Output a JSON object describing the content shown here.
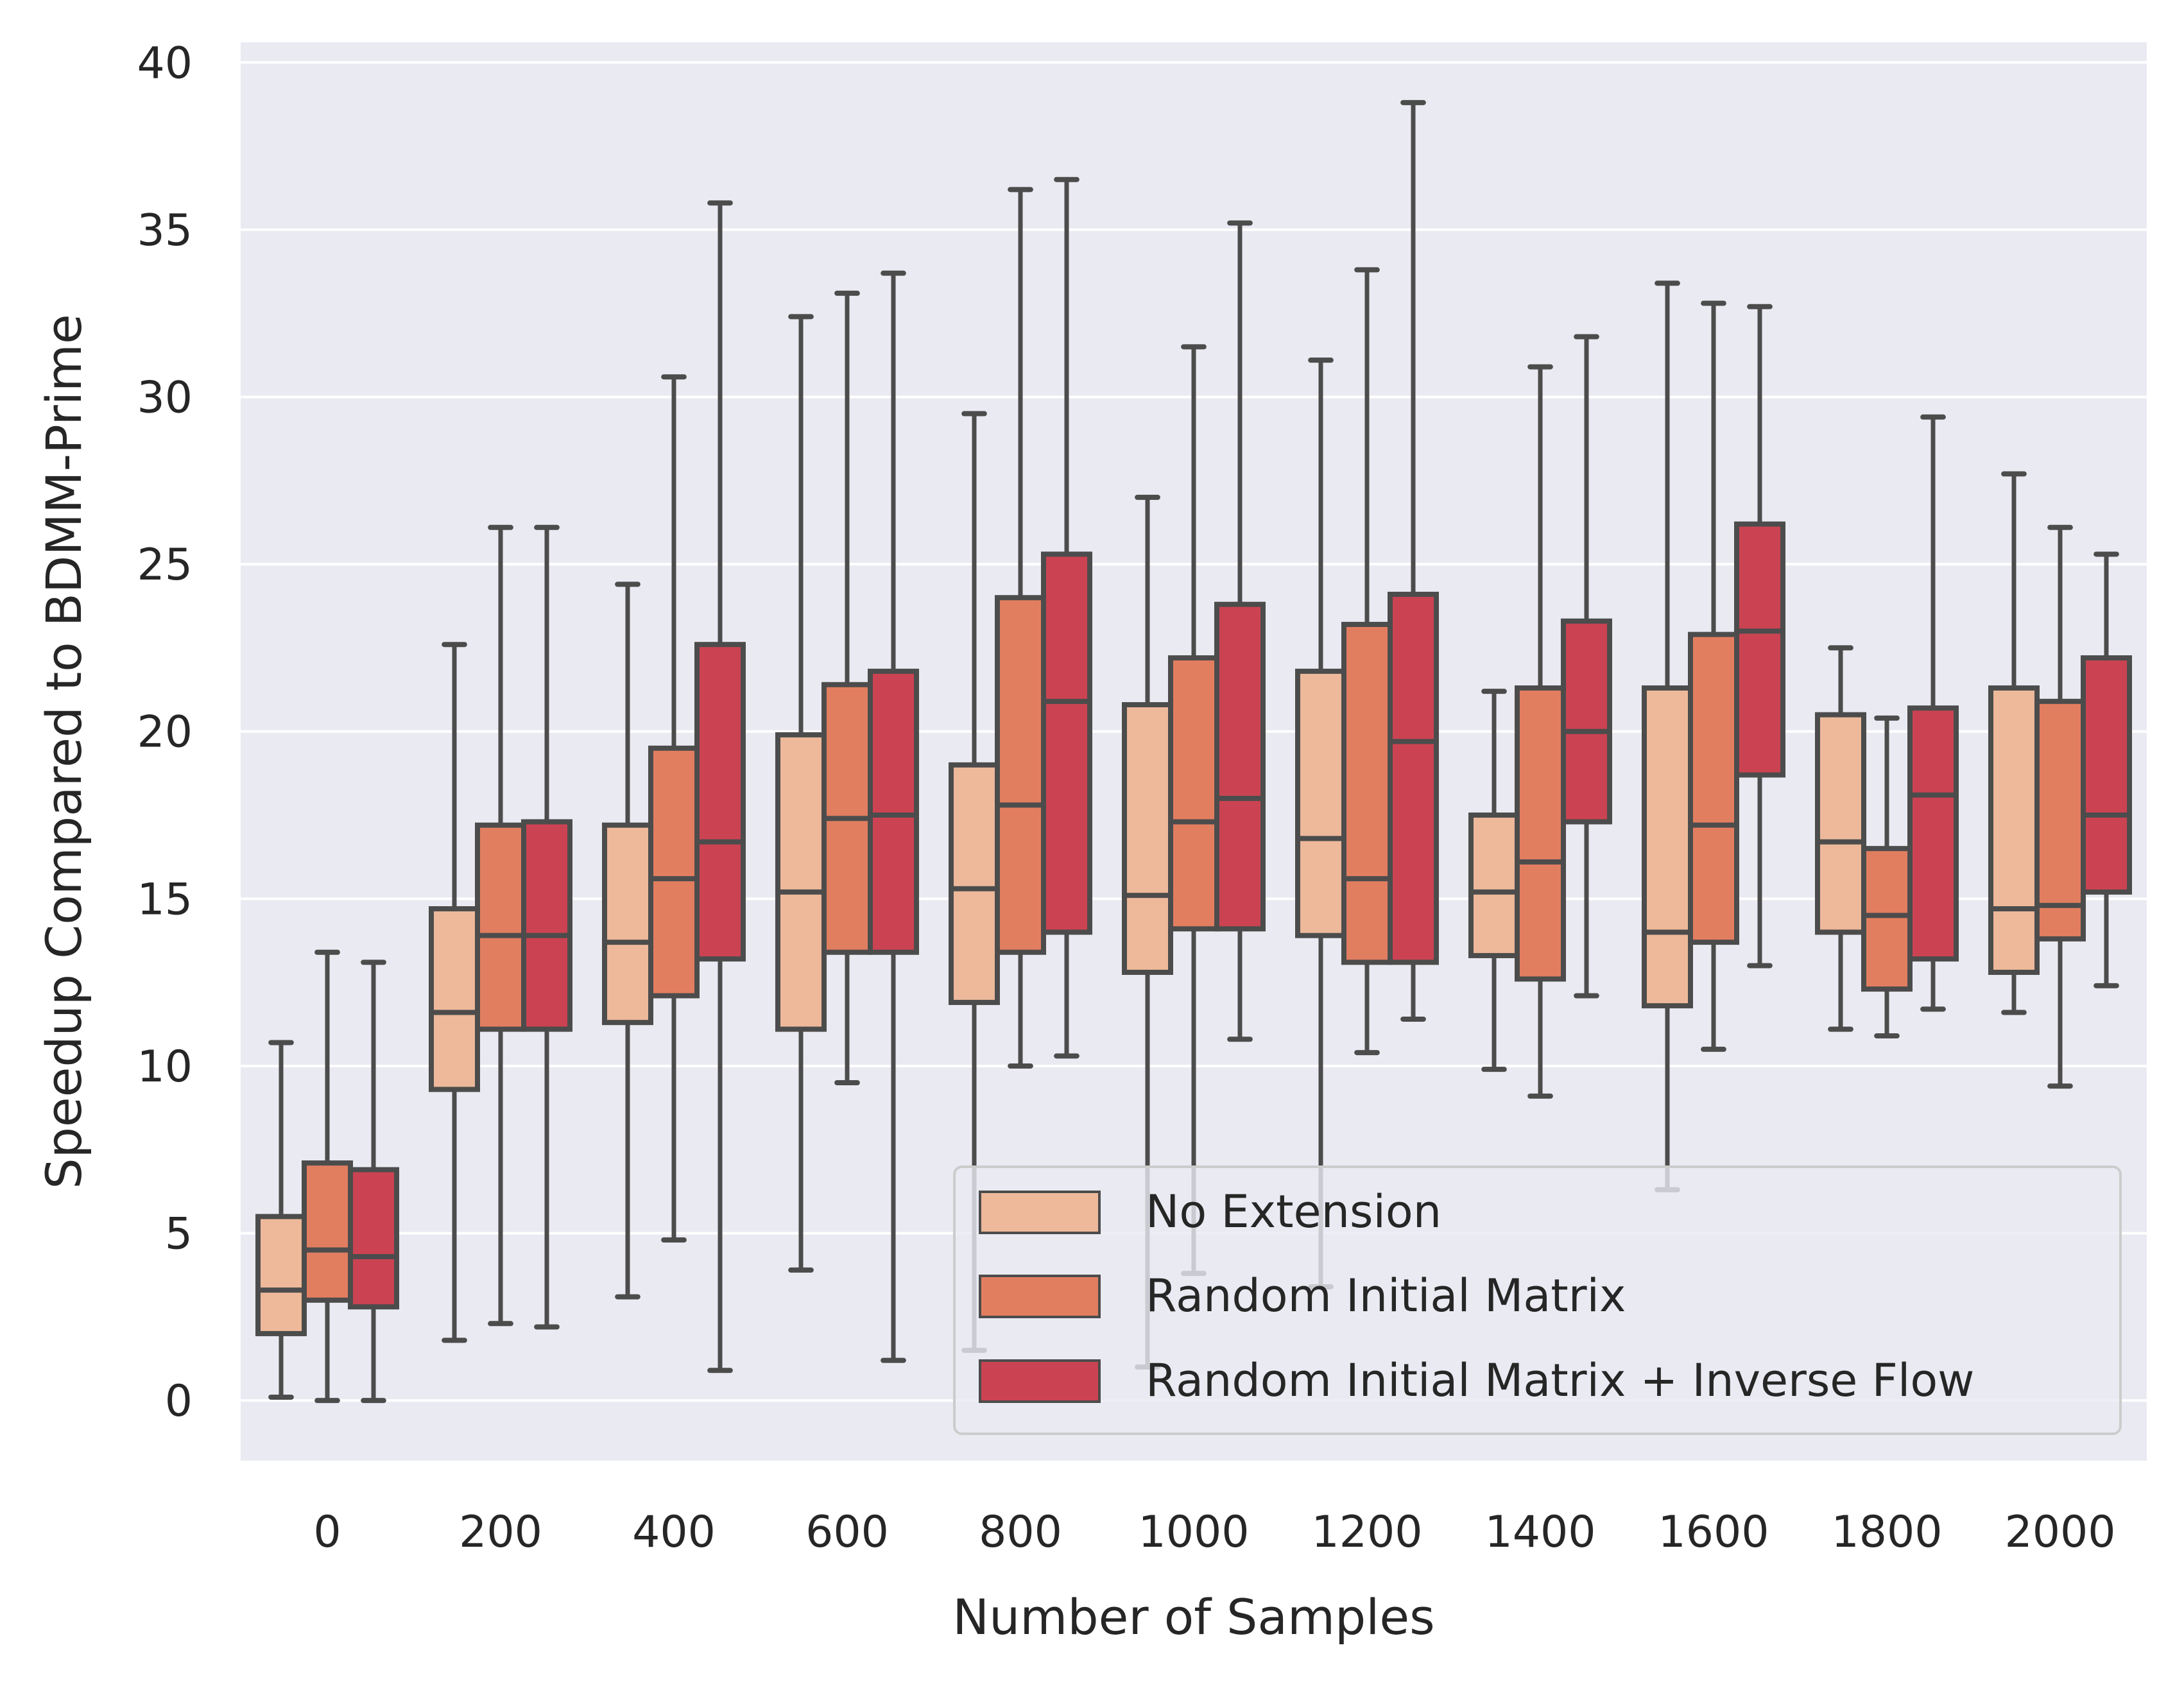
{
  "chart_data": {
    "type": "box",
    "title": "",
    "xlabel": "Number of Samples",
    "ylabel": "Speedup Compared to BDMM-Prime",
    "categories": [
      "0",
      "200",
      "400",
      "600",
      "800",
      "1000",
      "1200",
      "1400",
      "1600",
      "1800",
      "2000"
    ],
    "ylim": [
      -1.8,
      40.6
    ],
    "yticks": [
      0,
      5,
      10,
      15,
      20,
      25,
      30,
      35,
      40
    ],
    "grid": true,
    "legend_position": "lower-right",
    "colors": {
      "No Extension": "#edb99a",
      "Random Initial Matrix": "#e27e60",
      "Random Initial Matrix + Inverse Flow": "#cb4352"
    },
    "edge_color": "#4c4c4c",
    "background": "#eaeaf2",
    "series": [
      {
        "name": "No Extension",
        "boxes": [
          {
            "min": 0.1,
            "q1": 2.0,
            "median": 3.3,
            "q3": 5.5,
            "max": 10.7
          },
          {
            "min": 1.8,
            "q1": 9.3,
            "median": 11.6,
            "q3": 14.7,
            "max": 22.6
          },
          {
            "min": 3.1,
            "q1": 11.3,
            "median": 13.7,
            "q3": 17.2,
            "max": 24.4
          },
          {
            "min": 3.9,
            "q1": 11.1,
            "median": 15.2,
            "q3": 19.9,
            "max": 32.4
          },
          {
            "min": 1.5,
            "q1": 11.9,
            "median": 15.3,
            "q3": 19.0,
            "max": 29.5
          },
          {
            "min": 1.0,
            "q1": 12.8,
            "median": 15.1,
            "q3": 20.8,
            "max": 27.0
          },
          {
            "min": 3.4,
            "q1": 13.9,
            "median": 16.8,
            "q3": 21.8,
            "max": 31.1
          },
          {
            "min": 9.9,
            "q1": 13.3,
            "median": 15.2,
            "q3": 17.5,
            "max": 21.2
          },
          {
            "min": 6.3,
            "q1": 11.8,
            "median": 14.0,
            "q3": 21.3,
            "max": 33.4
          },
          {
            "min": 11.1,
            "q1": 14.0,
            "median": 16.7,
            "q3": 20.5,
            "max": 22.5
          },
          {
            "min": 11.6,
            "q1": 12.8,
            "median": 14.7,
            "q3": 21.3,
            "max": 27.7
          }
        ]
      },
      {
        "name": "Random Initial Matrix",
        "boxes": [
          {
            "min": 0.0,
            "q1": 3.0,
            "median": 4.5,
            "q3": 7.1,
            "max": 13.4
          },
          {
            "min": 2.3,
            "q1": 11.1,
            "median": 13.9,
            "q3": 17.2,
            "max": 26.1
          },
          {
            "min": 4.8,
            "q1": 12.1,
            "median": 15.6,
            "q3": 19.5,
            "max": 30.6
          },
          {
            "min": 9.5,
            "q1": 13.4,
            "median": 17.4,
            "q3": 21.4,
            "max": 33.1
          },
          {
            "min": 10.0,
            "q1": 13.4,
            "median": 17.8,
            "q3": 24.0,
            "max": 36.2
          },
          {
            "min": 3.8,
            "q1": 14.1,
            "median": 17.3,
            "q3": 22.2,
            "max": 31.5
          },
          {
            "min": 10.4,
            "q1": 13.1,
            "median": 15.6,
            "q3": 23.2,
            "max": 33.8
          },
          {
            "min": 9.1,
            "q1": 12.6,
            "median": 16.1,
            "q3": 21.3,
            "max": 30.9
          },
          {
            "min": 10.5,
            "q1": 13.7,
            "median": 17.2,
            "q3": 22.9,
            "max": 32.8
          },
          {
            "min": 10.9,
            "q1": 12.3,
            "median": 14.5,
            "q3": 16.5,
            "max": 20.4
          },
          {
            "min": 9.4,
            "q1": 13.8,
            "median": 14.8,
            "q3": 20.9,
            "max": 26.1
          }
        ]
      },
      {
        "name": "Random Initial Matrix + Inverse Flow",
        "boxes": [
          {
            "min": 0.0,
            "q1": 2.8,
            "median": 4.3,
            "q3": 6.9,
            "max": 13.1
          },
          {
            "min": 2.2,
            "q1": 11.1,
            "median": 13.9,
            "q3": 17.3,
            "max": 26.1
          },
          {
            "min": 0.9,
            "q1": 13.2,
            "median": 16.7,
            "q3": 22.6,
            "max": 35.8
          },
          {
            "min": 1.2,
            "q1": 13.4,
            "median": 17.5,
            "q3": 21.8,
            "max": 33.7
          },
          {
            "min": 10.3,
            "q1": 14.0,
            "median": 20.9,
            "q3": 25.3,
            "max": 36.5
          },
          {
            "min": 10.8,
            "q1": 14.1,
            "median": 18.0,
            "q3": 23.8,
            "max": 35.2
          },
          {
            "min": 11.4,
            "q1": 13.1,
            "median": 19.7,
            "q3": 24.1,
            "max": 38.8
          },
          {
            "min": 12.1,
            "q1": 17.3,
            "median": 20.0,
            "q3": 23.3,
            "max": 31.8
          },
          {
            "min": 13.0,
            "q1": 18.7,
            "median": 23.0,
            "q3": 26.2,
            "max": 32.7
          },
          {
            "min": 11.7,
            "q1": 13.2,
            "median": 18.1,
            "q3": 20.7,
            "max": 29.4
          },
          {
            "min": 12.4,
            "q1": 15.2,
            "median": 17.5,
            "q3": 22.2,
            "max": 25.3
          }
        ]
      }
    ]
  }
}
